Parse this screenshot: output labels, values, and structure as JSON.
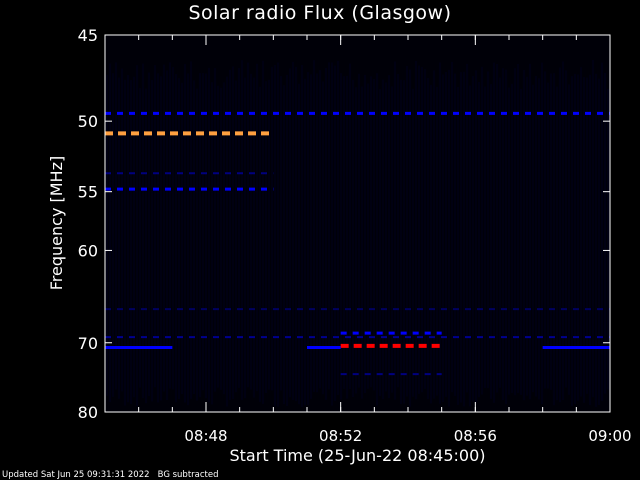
{
  "chart_data": {
    "type": "heatmap",
    "title": "Solar radio Flux (Glasgow)",
    "xlabel": "Start Time (25-Jun-22 08:45:00)",
    "ylabel": "Frequency [MHz]",
    "x_range": [
      "08:45",
      "09:00"
    ],
    "x_ticks": [
      "08:48",
      "08:52",
      "08:56",
      "09:00"
    ],
    "y_ticks": [
      45,
      50,
      55,
      60,
      70,
      80
    ],
    "y_range": [
      45,
      80
    ],
    "y_scale": "reciprocal",
    "y_direction": "increasing downward",
    "background_subtracted": true,
    "colormap": [
      "#000000",
      "#0000ff",
      "#ff0000",
      "#ffa040"
    ],
    "features": [
      {
        "start": "08:45",
        "end": "08:50",
        "freq": 50.8,
        "intensity": "high",
        "color": "#ffa040",
        "style": "dashed"
      },
      {
        "start": "08:45",
        "end": "08:50",
        "freq": 54.8,
        "intensity": "low",
        "color": "#0000ff",
        "style": "dashed"
      },
      {
        "start": "08:45",
        "end": "08:50",
        "freq": 53.6,
        "intensity": "very low",
        "color": "#000080",
        "style": "dashed"
      },
      {
        "start": "08:45",
        "end": "09:00",
        "freq": 49.5,
        "intensity": "low",
        "color": "#0000ff",
        "style": "dashed"
      },
      {
        "start": "08:52",
        "end": "08:55",
        "freq": 70.4,
        "intensity": "high",
        "color": "#ff0000",
        "style": "dashed"
      },
      {
        "start": "08:52",
        "end": "08:55",
        "freq": 68.8,
        "intensity": "low",
        "color": "#0000ff",
        "style": "dashed"
      },
      {
        "start": "08:52",
        "end": "08:55",
        "freq": 74.2,
        "intensity": "very low",
        "color": "#000080",
        "style": "dashed"
      },
      {
        "start": "08:45",
        "end": "08:47",
        "freq": 70.6,
        "intensity": "low",
        "color": "#0000ff",
        "style": "solid"
      },
      {
        "start": "08:51",
        "end": "08:52",
        "freq": 70.6,
        "intensity": "low",
        "color": "#0000ff",
        "style": "solid"
      },
      {
        "start": "08:58",
        "end": "09:00",
        "freq": 70.6,
        "intensity": "low",
        "color": "#0000ff",
        "style": "solid"
      },
      {
        "start": "08:45",
        "end": "09:00",
        "freq": 69.3,
        "intensity": "very low",
        "color": "#000090",
        "style": "dashed"
      },
      {
        "start": "08:45",
        "end": "09:00",
        "freq": 66.0,
        "intensity": "very low",
        "color": "#000060",
        "style": "dashed"
      }
    ]
  },
  "footer": {
    "updated": "Updated Sat Jun 25 09:31:31 2022",
    "note": "BG subtracted"
  }
}
